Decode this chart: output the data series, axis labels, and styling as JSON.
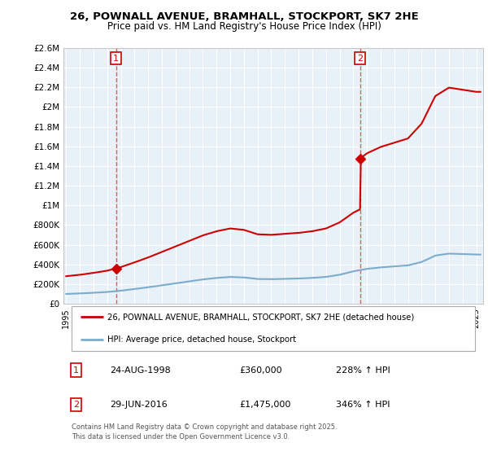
{
  "title_line1": "26, POWNALL AVENUE, BRAMHALL, STOCKPORT, SK7 2HE",
  "title_line2": "Price paid vs. HM Land Registry's House Price Index (HPI)",
  "legend_label_red": "26, POWNALL AVENUE, BRAMHALL, STOCKPORT, SK7 2HE (detached house)",
  "legend_label_blue": "HPI: Average price, detached house, Stockport",
  "annotation1_num": "1",
  "annotation1_date": "24-AUG-1998",
  "annotation1_price": "£360,000",
  "annotation1_hpi": "228% ↑ HPI",
  "annotation2_num": "2",
  "annotation2_date": "29-JUN-2016",
  "annotation2_price": "£1,475,000",
  "annotation2_hpi": "346% ↑ HPI",
  "footer": "Contains HM Land Registry data © Crown copyright and database right 2025.\nThis data is licensed under the Open Government Licence v3.0.",
  "color_red": "#cc0000",
  "color_blue": "#7aaccc",
  "color_dashed": "#dd4444",
  "bg_color": "#ffffff",
  "plot_bg": "#e8f0f8",
  "grid_color": "#ffffff",
  "ylim_max": 2600000,
  "ylim_min": 0,
  "sale1_x": 1998.65,
  "sale1_y": 360000,
  "sale2_x": 2016.5,
  "sale2_y": 1475000,
  "dashed1_x": 1998.65,
  "dashed2_x": 2016.5,
  "x_start": 1994.8,
  "x_end": 2025.5,
  "yticks": [
    0,
    200000,
    400000,
    600000,
    800000,
    1000000,
    1200000,
    1400000,
    1600000,
    1800000,
    2000000,
    2200000,
    2400000,
    2600000
  ],
  "ytick_labels": [
    "£0",
    "£200K",
    "£400K",
    "£600K",
    "£800K",
    "£1M",
    "£1.2M",
    "£1.4M",
    "£1.6M",
    "£1.8M",
    "£2M",
    "£2.2M",
    "£2.4M",
    "£2.6M"
  ],
  "xticks": [
    1995,
    1996,
    1997,
    1998,
    1999,
    2000,
    2001,
    2002,
    2003,
    2004,
    2005,
    2006,
    2007,
    2008,
    2009,
    2010,
    2011,
    2012,
    2013,
    2014,
    2015,
    2016,
    2017,
    2018,
    2019,
    2020,
    2021,
    2022,
    2023,
    2024,
    2025
  ],
  "hpi_key_x": [
    1995,
    1996,
    1997,
    1998,
    1999,
    2000,
    2001,
    2002,
    2003,
    2004,
    2005,
    2006,
    2007,
    2008,
    2009,
    2010,
    2011,
    2012,
    2013,
    2014,
    2015,
    2016,
    2017,
    2018,
    2019,
    2020,
    2021,
    2022,
    2023,
    2024,
    2025
  ],
  "hpi_key_y": [
    100000,
    105000,
    112000,
    120000,
    133000,
    150000,
    168000,
    188000,
    208000,
    228000,
    248000,
    263000,
    273000,
    268000,
    252000,
    250000,
    254000,
    257000,
    263000,
    273000,
    295000,
    330000,
    355000,
    370000,
    380000,
    390000,
    425000,
    490000,
    510000,
    505000,
    500000
  ]
}
